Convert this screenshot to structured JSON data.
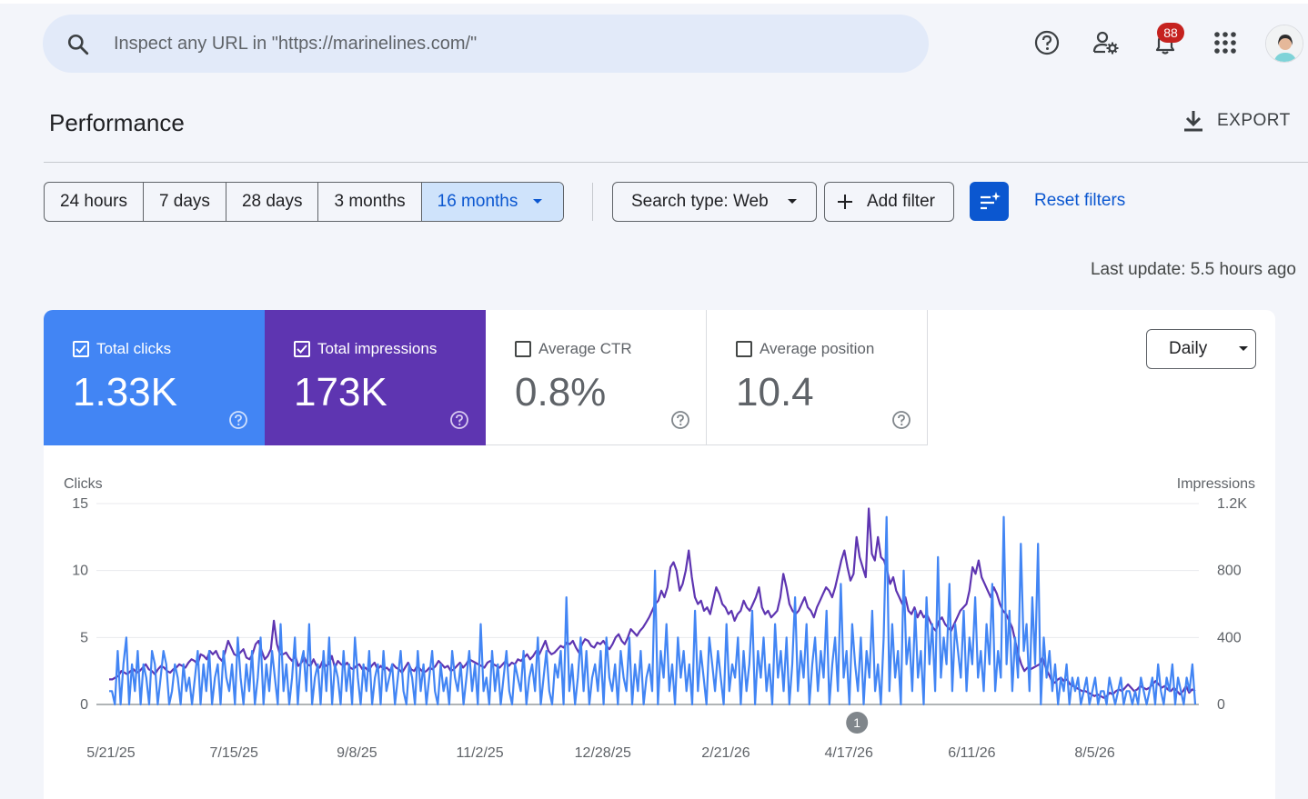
{
  "header": {
    "search_placeholder": "Inspect any URL in \"https://marinelines.com/\"",
    "notification_count": "88",
    "icons": [
      "search-icon",
      "help-icon",
      "manage-users-icon",
      "notifications-icon",
      "apps-grid-icon",
      "avatar"
    ]
  },
  "page": {
    "title": "Performance",
    "export_label": "EXPORT"
  },
  "filters": {
    "ranges": [
      "24 hours",
      "7 days",
      "28 days",
      "3 months",
      "16 months"
    ],
    "active_range": "16 months",
    "search_type": "Search type: Web",
    "add_filter": "Add filter",
    "reset": "Reset filters",
    "last_update": "Last update: 5.5 hours ago"
  },
  "metrics": {
    "clicks": {
      "label": "Total clicks",
      "value": "1.33K",
      "checked": true,
      "color": "#4285f4"
    },
    "impressions": {
      "label": "Total impressions",
      "value": "173K",
      "checked": true,
      "color": "#5e35b1"
    },
    "ctr": {
      "label": "Average CTR",
      "value": "0.8%",
      "checked": false
    },
    "position": {
      "label": "Average position",
      "value": "10.4",
      "checked": false
    }
  },
  "granularity": "Daily",
  "chart_data": {
    "type": "line",
    "left_axis_label": "Clicks",
    "right_axis_label": "Impressions",
    "left_ticks": [
      "0",
      "5",
      "10",
      "15"
    ],
    "right_ticks": [
      "0",
      "400",
      "800",
      "1.2K"
    ],
    "ylim_left": [
      0,
      15
    ],
    "ylim_right": [
      0,
      1200
    ],
    "x_ticks": [
      "5/21/25",
      "7/15/25",
      "9/8/25",
      "11/2/25",
      "12/28/25",
      "2/21/26",
      "4/17/26",
      "6/11/26",
      "8/5/26"
    ],
    "annotation": {
      "label": "1",
      "date": "4/17/26"
    },
    "series": [
      {
        "name": "Total clicks",
        "color": "#4285f4",
        "axis": "left",
        "values": [
          1,
          1,
          0,
          4,
          0,
          3,
          5,
          0,
          3,
          1,
          4,
          0,
          3,
          2,
          0,
          4,
          3,
          0,
          2,
          4,
          3,
          0,
          1,
          3,
          2,
          0,
          3,
          1,
          2,
          0,
          2,
          4,
          0,
          3,
          1,
          4,
          0,
          2,
          3,
          0,
          4,
          2,
          1,
          3,
          0,
          5,
          2,
          0,
          3,
          1,
          4,
          0,
          2,
          5,
          0,
          3,
          1,
          4,
          2,
          0,
          6,
          1,
          3,
          0,
          2,
          5,
          0,
          3,
          4,
          1,
          6,
          0,
          2,
          3,
          0,
          4,
          1,
          5,
          0,
          3,
          2,
          0,
          4,
          1,
          3,
          0,
          5,
          2,
          0,
          3,
          1,
          4,
          0,
          2,
          3,
          0,
          4,
          1,
          2,
          3,
          0,
          2,
          4,
          1,
          0,
          3,
          2,
          0,
          4,
          1,
          3,
          0,
          2,
          4,
          1,
          0,
          3,
          1,
          2,
          0,
          4,
          2,
          1,
          3,
          0,
          2,
          4,
          1,
          3,
          0,
          6,
          1,
          2,
          0,
          4,
          1,
          3,
          0,
          2,
          4,
          1,
          0,
          3,
          2,
          1,
          4,
          0,
          2,
          3,
          1,
          5,
          0,
          2,
          4,
          1,
          0,
          3,
          2,
          4,
          0,
          8,
          1,
          3,
          0,
          2,
          5,
          1,
          4,
          0,
          2,
          3,
          1,
          4,
          0,
          5,
          2,
          1,
          3,
          0,
          4,
          2,
          1,
          5,
          0,
          3,
          1,
          4,
          0,
          2,
          3,
          1,
          10,
          0,
          4,
          2,
          6,
          1,
          3,
          0,
          5,
          2,
          4,
          1,
          3,
          0,
          7,
          1,
          4,
          2,
          0,
          5,
          3,
          1,
          4,
          2,
          0,
          6,
          1,
          3,
          2,
          5,
          0,
          4,
          1,
          3,
          7,
          0,
          4,
          2,
          5,
          1,
          3,
          0,
          6,
          2,
          4,
          1,
          5,
          0,
          3,
          8,
          1,
          4,
          2,
          6,
          0,
          3,
          5,
          1,
          4,
          2,
          7,
          0,
          3,
          5,
          1,
          9,
          2,
          4,
          0,
          6,
          3,
          1,
          5,
          0,
          4,
          2,
          7,
          1,
          3,
          0,
          5,
          14,
          1,
          6,
          2,
          4,
          0,
          10,
          3,
          5,
          1,
          7,
          2,
          4,
          0,
          8,
          3,
          6,
          1,
          11,
          2,
          5,
          3,
          9,
          1,
          6,
          4,
          2,
          7,
          1,
          5,
          3,
          8,
          2,
          4,
          1,
          6,
          3,
          9,
          1,
          4,
          2,
          14,
          3,
          7,
          1,
          5,
          2,
          12,
          4,
          6,
          1,
          8,
          3,
          12,
          0,
          5,
          2,
          4,
          1,
          3,
          0,
          2,
          1,
          3,
          0,
          2,
          1,
          2,
          0,
          1,
          2,
          0,
          1,
          2,
          0,
          1,
          1,
          0,
          2,
          1,
          0,
          1,
          2,
          0,
          1,
          1,
          0,
          1,
          0,
          2,
          1,
          0,
          1,
          2,
          0,
          3,
          1,
          0,
          2,
          1,
          3,
          0,
          2,
          1,
          0,
          2,
          1,
          3,
          0
        ]
      },
      {
        "name": "Total impressions",
        "color": "#5e35b1",
        "axis": "right",
        "values": [
          150,
          150,
          160,
          170,
          200,
          190,
          180,
          200,
          210,
          190,
          200,
          220,
          240,
          210,
          200,
          180,
          210,
          230,
          220,
          200,
          190,
          210,
          220,
          240,
          230,
          220,
          250,
          270,
          260,
          240,
          300,
          290,
          270,
          320,
          300,
          320,
          280,
          260,
          310,
          380,
          340,
          300,
          290,
          310,
          330,
          280,
          270,
          300,
          360,
          380,
          320,
          270,
          290,
          330,
          500,
          360,
          300,
          300,
          310,
          280,
          260,
          290,
          230,
          250,
          280,
          240,
          230,
          270,
          230,
          220,
          260,
          230,
          240,
          290,
          220,
          260,
          240,
          230,
          250,
          220,
          210,
          230,
          240,
          210,
          220,
          200,
          230,
          250,
          210,
          230,
          210,
          220,
          200,
          240,
          220,
          210,
          190,
          220,
          250,
          210,
          200,
          230,
          210,
          190,
          200,
          220,
          210,
          230,
          260,
          240,
          220,
          230,
          200,
          210,
          230,
          250,
          220,
          240,
          270,
          260,
          250,
          240,
          230,
          220,
          250,
          260,
          240,
          230,
          220,
          240,
          260,
          230,
          250,
          240,
          270,
          260,
          280,
          300,
          270,
          290,
          320,
          300,
          340,
          380,
          320,
          300,
          310,
          330,
          350,
          340,
          370,
          360,
          380,
          340,
          310,
          360,
          390,
          380,
          350,
          340,
          370,
          360,
          380,
          350,
          330,
          360,
          400,
          420,
          380,
          360,
          400,
          450,
          430,
          410,
          440,
          460,
          490,
          520,
          560,
          600,
          620,
          680,
          640,
          700,
          820,
          850,
          800,
          680,
          720,
          800,
          920,
          760,
          640,
          600,
          620,
          560,
          580,
          540,
          620,
          700,
          660,
          600,
          580,
          540,
          560,
          500,
          540,
          560,
          620,
          580,
          560,
          600,
          640,
          700,
          580,
          540,
          560,
          520,
          540,
          560,
          640,
          780,
          700,
          600,
          560,
          540,
          560,
          600,
          640,
          580,
          560,
          520,
          580,
          620,
          660,
          700,
          680,
          640,
          700,
          780,
          860,
          920,
          820,
          740,
          780,
          1000,
          880,
          820,
          760,
          1170,
          900,
          860,
          1000,
          880,
          860,
          800,
          720,
          760,
          680,
          640,
          600,
          640,
          560,
          540,
          580,
          520,
          560,
          520,
          540,
          500,
          460,
          440,
          500,
          520,
          480,
          460,
          440,
          480,
          520,
          560,
          580,
          600,
          680,
          820,
          780,
          860,
          760,
          720,
          680,
          640,
          700,
          660,
          600,
          560,
          540,
          500,
          460,
          380,
          300,
          240,
          200,
          220,
          210,
          220,
          230,
          240,
          280,
          220,
          180,
          140,
          130,
          150,
          160,
          140,
          150,
          120,
          110,
          100,
          90,
          80,
          80,
          70,
          60,
          50,
          60,
          50,
          40,
          50,
          70,
          60,
          80,
          90,
          80,
          100,
          120,
          100,
          80,
          90,
          110,
          100,
          90,
          100,
          120,
          140,
          120,
          100,
          110,
          90,
          80,
          100,
          80,
          60,
          80,
          110,
          70,
          90,
          80
        ]
      }
    ]
  }
}
